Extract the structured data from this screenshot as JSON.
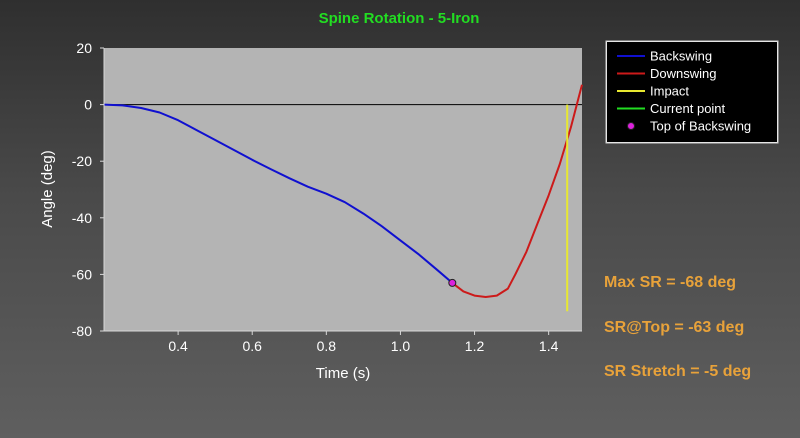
{
  "chart_data": {
    "type": "line",
    "title": "Spine Rotation - 5-Iron",
    "xlabel": "Time (s)",
    "ylabel": "Angle (deg)",
    "xlim": [
      0.2,
      1.49
    ],
    "ylim": [
      -80,
      20
    ],
    "xticks": [
      0.4,
      0.6,
      0.8,
      1.0,
      1.2,
      1.4
    ],
    "xtick_labels": [
      "0.4",
      "0.6",
      "0.8",
      "1.0",
      "1.2",
      "1.4"
    ],
    "yticks": [
      20,
      0,
      -20,
      -40,
      -60,
      -80
    ],
    "ytick_labels": [
      "20",
      "0",
      "-20",
      "-40",
      "-60",
      "-80"
    ],
    "grid": false,
    "legend_placement": "right",
    "plot_background": "#b4b4b4",
    "series": [
      {
        "name": "Backswing",
        "color": "#1010d0",
        "x": [
          0.2,
          0.25,
          0.3,
          0.35,
          0.4,
          0.45,
          0.5,
          0.55,
          0.6,
          0.65,
          0.7,
          0.75,
          0.8,
          0.85,
          0.9,
          0.95,
          1.0,
          1.05,
          1.1,
          1.14
        ],
        "y": [
          0,
          -0.3,
          -1.2,
          -2.8,
          -5.5,
          -9,
          -12.5,
          -16,
          -19.5,
          -22.8,
          -26,
          -29,
          -31.5,
          -34.5,
          -38.5,
          -43,
          -48,
          -53,
          -58.5,
          -63
        ]
      },
      {
        "name": "Downswing",
        "color": "#cc1a1a",
        "x": [
          1.14,
          1.17,
          1.2,
          1.23,
          1.26,
          1.29,
          1.31,
          1.34,
          1.37,
          1.4,
          1.43,
          1.46,
          1.48,
          1.49
        ],
        "y": [
          -63,
          -66,
          -67.5,
          -68,
          -67.5,
          -65,
          -60,
          -52,
          -42,
          -32,
          -21,
          -8,
          2,
          7
        ]
      },
      {
        "name": "Impact",
        "color": "#e8e830",
        "x": [
          1.45,
          1.45
        ],
        "y": [
          0,
          -73
        ]
      },
      {
        "name": "Current point",
        "color": "#22dd22",
        "x": [],
        "y": []
      }
    ],
    "markers": [
      {
        "name": "Top of Backswing",
        "x": 1.14,
        "y": -63,
        "color": "#dd22dd"
      }
    ],
    "reference_line": {
      "y": 0,
      "color": "#000000"
    },
    "legend": [
      "Backswing",
      "Downswing",
      "Impact",
      "Current point",
      "Top of Backswing"
    ]
  },
  "stats": {
    "max_sr": "Max SR = -68 deg",
    "sr_top": "SR@Top = -63 deg",
    "sr_stretch": "SR Stretch = -5 deg"
  }
}
